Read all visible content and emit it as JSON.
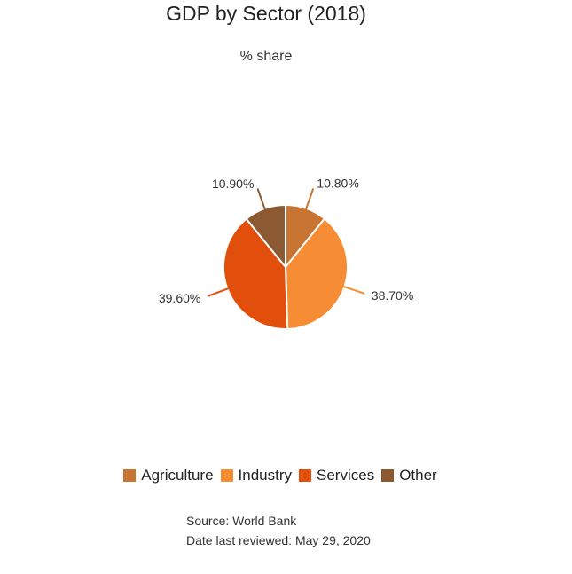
{
  "chart_data": {
    "type": "pie",
    "title": "GDP by Sector (2018)",
    "subtitle": "% share",
    "slices": [
      {
        "label": "Agriculture",
        "value": 10.8,
        "display": "10.80%",
        "color": "#c87533"
      },
      {
        "label": "Industry",
        "value": 38.7,
        "display": "38.70%",
        "color": "#f68d34"
      },
      {
        "label": "Services",
        "value": 39.6,
        "display": "39.60%",
        "color": "#e24e0c"
      },
      {
        "label": "Other",
        "value": 10.9,
        "display": "10.90%",
        "color": "#8b5a32"
      }
    ],
    "legend_position": "bottom"
  },
  "footer": {
    "source": "Source: World Bank",
    "reviewed": "Date last reviewed: May 29, 2020"
  }
}
